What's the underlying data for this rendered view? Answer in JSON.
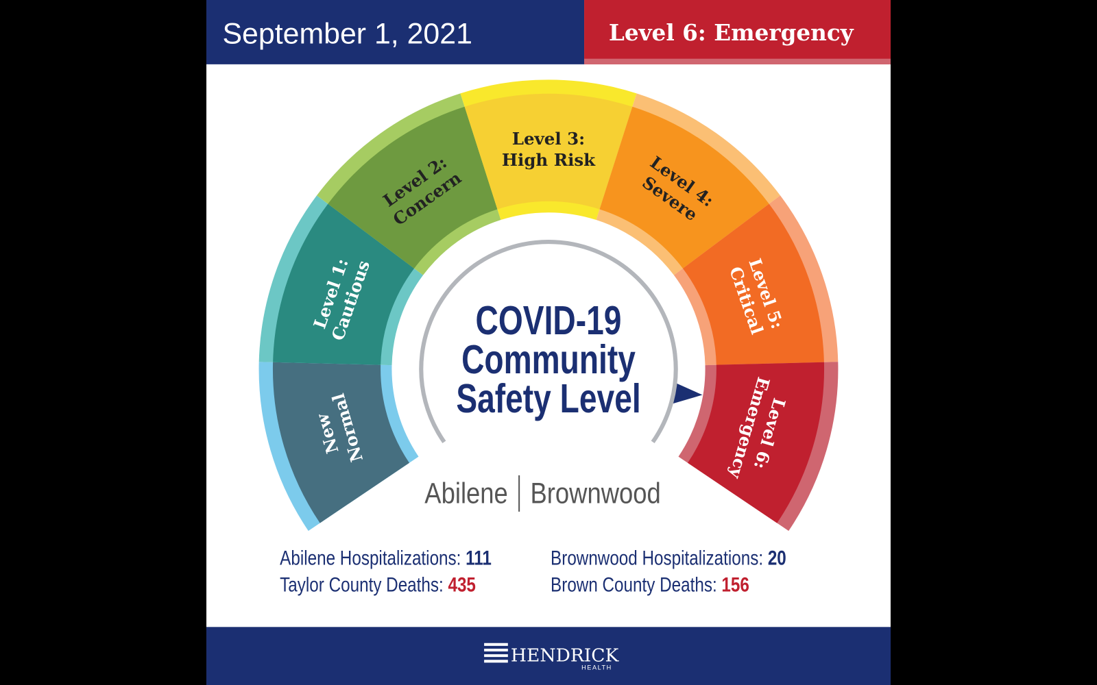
{
  "header": {
    "date": "September 1, 2021",
    "level": "Level 6: Emergency"
  },
  "gauge": {
    "segments": [
      {
        "lines": [
          "New",
          "Normal"
        ]
      },
      {
        "lines": [
          "Level 1:",
          "Cautious"
        ]
      },
      {
        "lines": [
          "Level 2:",
          "Concern"
        ]
      },
      {
        "lines": [
          "Level 3:",
          "High Risk"
        ]
      },
      {
        "lines": [
          "Level 4:",
          "Severe"
        ]
      },
      {
        "lines": [
          "Level 5:",
          "Critical"
        ]
      },
      {
        "lines": [
          "Level 6:",
          "Emergency"
        ]
      }
    ],
    "title": [
      "COVID-19",
      "Community",
      "Safety Level"
    ],
    "cities": [
      "Abilene",
      "Brownwood"
    ]
  },
  "stats": [
    {
      "label": "Abilene Hospitalizations:",
      "value": "111"
    },
    {
      "label": "Taylor County Deaths:",
      "value": "435"
    },
    {
      "label": "Brownwood Hospitalizations:",
      "value": "20"
    },
    {
      "label": "Brown County Deaths:",
      "value": "156"
    }
  ],
  "footer": {
    "brand": "HENDRICK",
    "sub": "HEALTH"
  }
}
